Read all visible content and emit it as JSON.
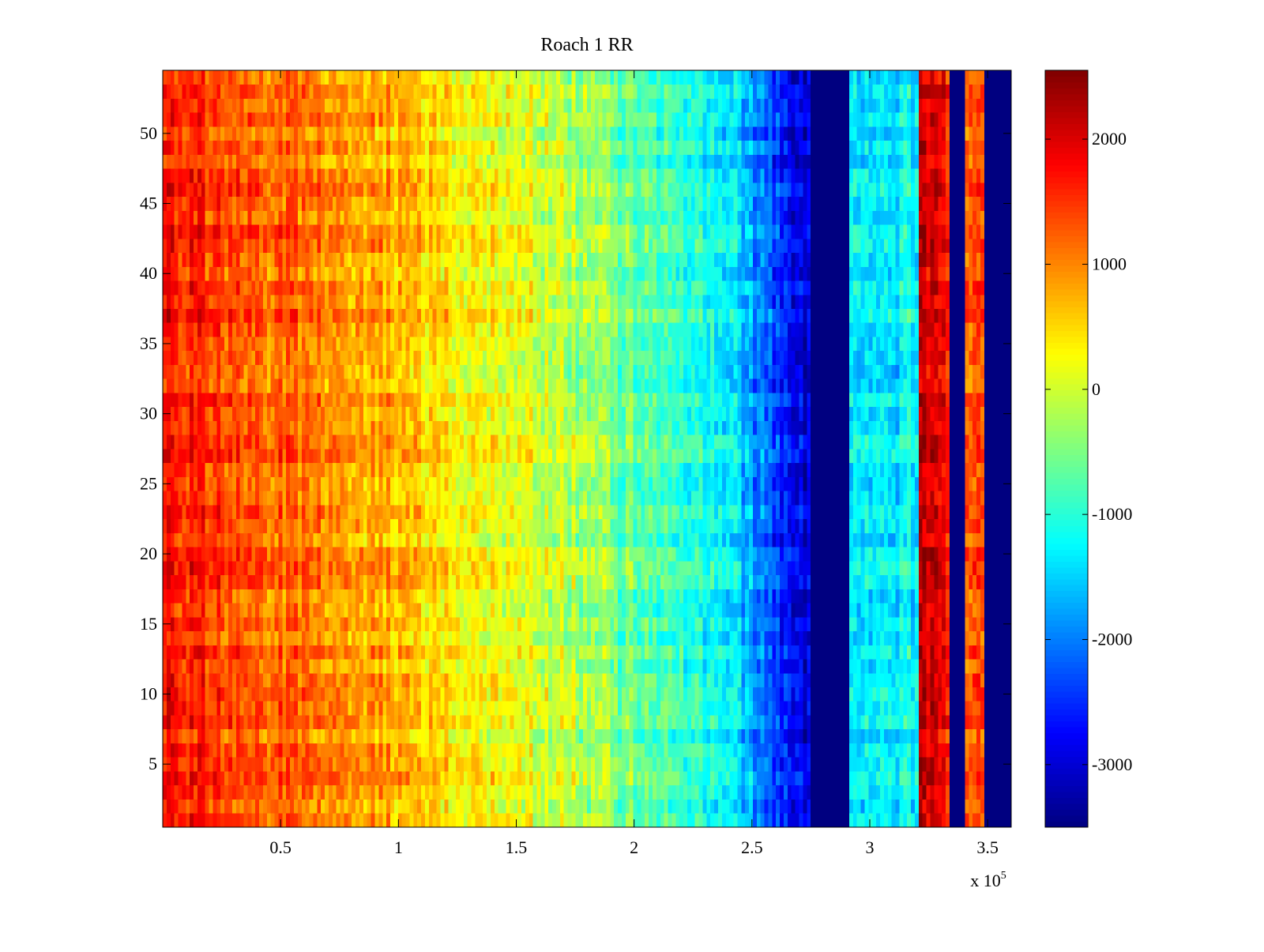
{
  "chart_data": {
    "type": "heatmap",
    "title": "Roach 1 RR",
    "xlabel": "",
    "ylabel": "",
    "xlim": [
      0,
      360000
    ],
    "ylim": [
      0.5,
      54.5
    ],
    "x_ticks": [
      {
        "value": 50000,
        "label": "0.5"
      },
      {
        "value": 100000,
        "label": "1"
      },
      {
        "value": 150000,
        "label": "1.5"
      },
      {
        "value": 200000,
        "label": "2"
      },
      {
        "value": 250000,
        "label": "2.5"
      },
      {
        "value": 300000,
        "label": "3"
      },
      {
        "value": 350000,
        "label": "3.5"
      }
    ],
    "x_multiplier": {
      "base": "x 10",
      "exponent": "5"
    },
    "y_ticks": [
      {
        "value": 5,
        "label": "5"
      },
      {
        "value": 10,
        "label": "10"
      },
      {
        "value": 15,
        "label": "15"
      },
      {
        "value": 20,
        "label": "20"
      },
      {
        "value": 25,
        "label": "25"
      },
      {
        "value": 30,
        "label": "30"
      },
      {
        "value": 35,
        "label": "35"
      },
      {
        "value": 40,
        "label": "40"
      },
      {
        "value": 45,
        "label": "45"
      },
      {
        "value": 50,
        "label": "50"
      }
    ],
    "rows": 54,
    "colormap": "jet",
    "clim": [
      -3500,
      2550
    ],
    "colorbar_ticks": [
      {
        "value": 2000,
        "label": "2000"
      },
      {
        "value": 1000,
        "label": "1000"
      },
      {
        "value": 0,
        "label": "0"
      },
      {
        "value": -1000,
        "label": "-1000"
      },
      {
        "value": -2000,
        "label": "-2000"
      },
      {
        "value": -3000,
        "label": "-3000"
      }
    ],
    "column_profile": [
      {
        "x": 0,
        "value": 1700
      },
      {
        "x": 30000,
        "value": 1300
      },
      {
        "x": 60000,
        "value": 1100
      },
      {
        "x": 100000,
        "value": 700
      },
      {
        "x": 130000,
        "value": 350
      },
      {
        "x": 160000,
        "value": 50
      },
      {
        "x": 190000,
        "value": -450
      },
      {
        "x": 220000,
        "value": -900
      },
      {
        "x": 245000,
        "value": -1500
      },
      {
        "x": 262000,
        "value": -2500
      },
      {
        "x": 274000,
        "value": -3000
      },
      {
        "x": 275000,
        "value": -3500
      },
      {
        "x": 291000,
        "value": -3500
      },
      {
        "x": 292000,
        "value": -1400
      },
      {
        "x": 320000,
        "value": -1300
      },
      {
        "x": 321000,
        "value": 2100
      },
      {
        "x": 333000,
        "value": 1800
      },
      {
        "x": 334000,
        "value": -3500
      },
      {
        "x": 340000,
        "value": -3500
      },
      {
        "x": 341000,
        "value": 1400
      },
      {
        "x": 348000,
        "value": 1300
      },
      {
        "x": 349000,
        "value": -3500
      },
      {
        "x": 360000,
        "value": -3500
      }
    ]
  }
}
